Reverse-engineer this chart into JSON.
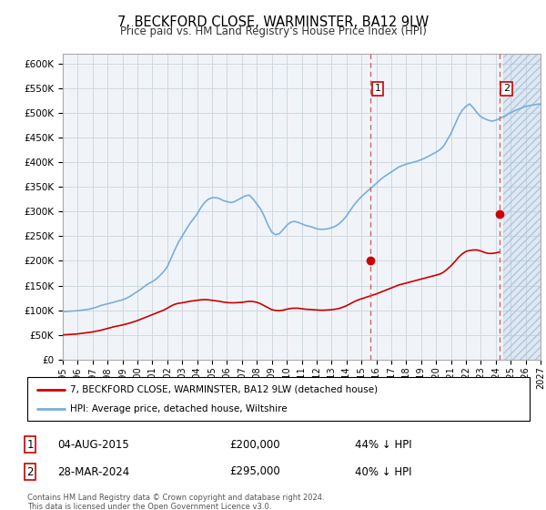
{
  "title": "7, BECKFORD CLOSE, WARMINSTER, BA12 9LW",
  "subtitle": "Price paid vs. HM Land Registry's House Price Index (HPI)",
  "ylim": [
    0,
    620000
  ],
  "yticks": [
    0,
    50000,
    100000,
    150000,
    200000,
    250000,
    300000,
    350000,
    400000,
    450000,
    500000,
    550000,
    600000
  ],
  "ytick_labels": [
    "£0",
    "£50K",
    "£100K",
    "£150K",
    "£200K",
    "£250K",
    "£300K",
    "£350K",
    "£400K",
    "£450K",
    "£500K",
    "£550K",
    "£600K"
  ],
  "xlim_start": 1995.0,
  "xlim_end": 2027.0,
  "hpi_color": "#7aaddc",
  "price_color": "#cc0000",
  "sale1_year": 2015.58,
  "sale1_price": 200000,
  "sale2_year": 2024.23,
  "sale2_price": 295000,
  "sale1_date": "04-AUG-2015",
  "sale1_amount": "£200,000",
  "sale1_pct": "44% ↓ HPI",
  "sale2_date": "28-MAR-2024",
  "sale2_amount": "£295,000",
  "sale2_pct": "40% ↓ HPI",
  "legend_property": "7, BECKFORD CLOSE, WARMINSTER, BA12 9LW (detached house)",
  "legend_hpi": "HPI: Average price, detached house, Wiltshire",
  "footer": "Contains HM Land Registry data © Crown copyright and database right 2024.\nThis data is licensed under the Open Government Licence v3.0.",
  "background_color": "#f0f4f8",
  "grid_color": "#d0d8e0",
  "future_start": 2024.5,
  "hpi_data": [
    [
      1995.0,
      97000
    ],
    [
      1995.25,
      97500
    ],
    [
      1995.5,
      98000
    ],
    [
      1995.75,
      98500
    ],
    [
      1996.0,
      99000
    ],
    [
      1996.25,
      100000
    ],
    [
      1996.5,
      101000
    ],
    [
      1996.75,
      102000
    ],
    [
      1997.0,
      104000
    ],
    [
      1997.25,
      106000
    ],
    [
      1997.5,
      109000
    ],
    [
      1997.75,
      111000
    ],
    [
      1998.0,
      113000
    ],
    [
      1998.25,
      115000
    ],
    [
      1998.5,
      117000
    ],
    [
      1998.75,
      119000
    ],
    [
      1999.0,
      121000
    ],
    [
      1999.25,
      124000
    ],
    [
      1999.5,
      128000
    ],
    [
      1999.75,
      133000
    ],
    [
      2000.0,
      138000
    ],
    [
      2000.25,
      143000
    ],
    [
      2000.5,
      149000
    ],
    [
      2000.75,
      154000
    ],
    [
      2001.0,
      158000
    ],
    [
      2001.25,
      163000
    ],
    [
      2001.5,
      170000
    ],
    [
      2001.75,
      178000
    ],
    [
      2002.0,
      188000
    ],
    [
      2002.25,
      205000
    ],
    [
      2002.5,
      222000
    ],
    [
      2002.75,
      238000
    ],
    [
      2003.0,
      250000
    ],
    [
      2003.25,
      263000
    ],
    [
      2003.5,
      275000
    ],
    [
      2003.75,
      285000
    ],
    [
      2004.0,
      295000
    ],
    [
      2004.25,
      308000
    ],
    [
      2004.5,
      318000
    ],
    [
      2004.75,
      325000
    ],
    [
      2005.0,
      328000
    ],
    [
      2005.25,
      328000
    ],
    [
      2005.5,
      326000
    ],
    [
      2005.75,
      322000
    ],
    [
      2006.0,
      320000
    ],
    [
      2006.25,
      318000
    ],
    [
      2006.5,
      320000
    ],
    [
      2006.75,
      324000
    ],
    [
      2007.0,
      328000
    ],
    [
      2007.25,
      332000
    ],
    [
      2007.5,
      333000
    ],
    [
      2007.75,
      325000
    ],
    [
      2008.0,
      315000
    ],
    [
      2008.25,
      305000
    ],
    [
      2008.5,
      290000
    ],
    [
      2008.75,
      272000
    ],
    [
      2009.0,
      258000
    ],
    [
      2009.25,
      253000
    ],
    [
      2009.5,
      255000
    ],
    [
      2009.75,
      263000
    ],
    [
      2010.0,
      272000
    ],
    [
      2010.25,
      278000
    ],
    [
      2010.5,
      280000
    ],
    [
      2010.75,
      278000
    ],
    [
      2011.0,
      275000
    ],
    [
      2011.25,
      272000
    ],
    [
      2011.5,
      270000
    ],
    [
      2011.75,
      268000
    ],
    [
      2012.0,
      265000
    ],
    [
      2012.25,
      264000
    ],
    [
      2012.5,
      264000
    ],
    [
      2012.75,
      265000
    ],
    [
      2013.0,
      267000
    ],
    [
      2013.25,
      270000
    ],
    [
      2013.5,
      275000
    ],
    [
      2013.75,
      282000
    ],
    [
      2014.0,
      291000
    ],
    [
      2014.25,
      302000
    ],
    [
      2014.5,
      313000
    ],
    [
      2014.75,
      322000
    ],
    [
      2015.0,
      330000
    ],
    [
      2015.25,
      337000
    ],
    [
      2015.5,
      344000
    ],
    [
      2015.75,
      350000
    ],
    [
      2016.0,
      357000
    ],
    [
      2016.25,
      364000
    ],
    [
      2016.5,
      370000
    ],
    [
      2016.75,
      375000
    ],
    [
      2017.0,
      380000
    ],
    [
      2017.25,
      385000
    ],
    [
      2017.5,
      390000
    ],
    [
      2017.75,
      393000
    ],
    [
      2018.0,
      396000
    ],
    [
      2018.25,
      398000
    ],
    [
      2018.5,
      400000
    ],
    [
      2018.75,
      402000
    ],
    [
      2019.0,
      405000
    ],
    [
      2019.25,
      408000
    ],
    [
      2019.5,
      412000
    ],
    [
      2019.75,
      416000
    ],
    [
      2020.0,
      420000
    ],
    [
      2020.25,
      425000
    ],
    [
      2020.5,
      432000
    ],
    [
      2020.75,
      445000
    ],
    [
      2021.0,
      458000
    ],
    [
      2021.25,
      475000
    ],
    [
      2021.5,
      492000
    ],
    [
      2021.75,
      505000
    ],
    [
      2022.0,
      513000
    ],
    [
      2022.25,
      518000
    ],
    [
      2022.5,
      510000
    ],
    [
      2022.75,
      500000
    ],
    [
      2023.0,
      492000
    ],
    [
      2023.25,
      488000
    ],
    [
      2023.5,
      485000
    ],
    [
      2023.75,
      483000
    ],
    [
      2024.0,
      485000
    ],
    [
      2024.25,
      488000
    ],
    [
      2024.5,
      492000
    ],
    [
      2024.75,
      496000
    ],
    [
      2025.0,
      500000
    ],
    [
      2025.25,
      504000
    ],
    [
      2025.5,
      507000
    ],
    [
      2025.75,
      510000
    ],
    [
      2026.0,
      513000
    ],
    [
      2026.5,
      516000
    ],
    [
      2027.0,
      518000
    ]
  ],
  "price_data": [
    [
      1995.0,
      50000
    ],
    [
      1995.25,
      50500
    ],
    [
      1995.5,
      51000
    ],
    [
      1995.75,
      51500
    ],
    [
      1996.0,
      52000
    ],
    [
      1996.25,
      53000
    ],
    [
      1996.5,
      54000
    ],
    [
      1996.75,
      55000
    ],
    [
      1997.0,
      56000
    ],
    [
      1997.25,
      57500
    ],
    [
      1997.5,
      59000
    ],
    [
      1997.75,
      61000
    ],
    [
      1998.0,
      63000
    ],
    [
      1998.25,
      65000
    ],
    [
      1998.5,
      67000
    ],
    [
      1998.75,
      68500
    ],
    [
      1999.0,
      70000
    ],
    [
      1999.25,
      72000
    ],
    [
      1999.5,
      74000
    ],
    [
      1999.75,
      76500
    ],
    [
      2000.0,
      79000
    ],
    [
      2000.25,
      82000
    ],
    [
      2000.5,
      85000
    ],
    [
      2000.75,
      88000
    ],
    [
      2001.0,
      91000
    ],
    [
      2001.25,
      94000
    ],
    [
      2001.5,
      97000
    ],
    [
      2001.75,
      100000
    ],
    [
      2002.0,
      104000
    ],
    [
      2002.25,
      108500
    ],
    [
      2002.5,
      112000
    ],
    [
      2002.75,
      114000
    ],
    [
      2003.0,
      115000
    ],
    [
      2003.25,
      116500
    ],
    [
      2003.5,
      118000
    ],
    [
      2003.75,
      119000
    ],
    [
      2004.0,
      120000
    ],
    [
      2004.25,
      121000
    ],
    [
      2004.5,
      121500
    ],
    [
      2004.75,
      121000
    ],
    [
      2005.0,
      120000
    ],
    [
      2005.25,
      119000
    ],
    [
      2005.5,
      118000
    ],
    [
      2005.75,
      116500
    ],
    [
      2006.0,
      115500
    ],
    [
      2006.25,
      115000
    ],
    [
      2006.5,
      115000
    ],
    [
      2006.75,
      115500
    ],
    [
      2007.0,
      116000
    ],
    [
      2007.25,
      117000
    ],
    [
      2007.5,
      118000
    ],
    [
      2007.75,
      117500
    ],
    [
      2008.0,
      116000
    ],
    [
      2008.25,
      113000
    ],
    [
      2008.5,
      109000
    ],
    [
      2008.75,
      105000
    ],
    [
      2009.0,
      101000
    ],
    [
      2009.25,
      99500
    ],
    [
      2009.5,
      99000
    ],
    [
      2009.75,
      100000
    ],
    [
      2010.0,
      102000
    ],
    [
      2010.25,
      103500
    ],
    [
      2010.5,
      104000
    ],
    [
      2010.75,
      104000
    ],
    [
      2011.0,
      103000
    ],
    [
      2011.25,
      102000
    ],
    [
      2011.5,
      101500
    ],
    [
      2011.75,
      101000
    ],
    [
      2012.0,
      100500
    ],
    [
      2012.25,
      100000
    ],
    [
      2012.5,
      100000
    ],
    [
      2012.75,
      100500
    ],
    [
      2013.0,
      101000
    ],
    [
      2013.25,
      102000
    ],
    [
      2013.5,
      103500
    ],
    [
      2013.75,
      106000
    ],
    [
      2014.0,
      109000
    ],
    [
      2014.25,
      113000
    ],
    [
      2014.5,
      117000
    ],
    [
      2014.75,
      120500
    ],
    [
      2015.0,
      123000
    ],
    [
      2015.25,
      125500
    ],
    [
      2015.5,
      128000
    ],
    [
      2015.75,
      130500
    ],
    [
      2016.0,
      133000
    ],
    [
      2016.25,
      136000
    ],
    [
      2016.5,
      139000
    ],
    [
      2016.75,
      142000
    ],
    [
      2017.0,
      145000
    ],
    [
      2017.25,
      148000
    ],
    [
      2017.5,
      151000
    ],
    [
      2017.75,
      153000
    ],
    [
      2018.0,
      155000
    ],
    [
      2018.25,
      157000
    ],
    [
      2018.5,
      159000
    ],
    [
      2018.75,
      161000
    ],
    [
      2019.0,
      163000
    ],
    [
      2019.25,
      165000
    ],
    [
      2019.5,
      167000
    ],
    [
      2019.75,
      169000
    ],
    [
      2020.0,
      171000
    ],
    [
      2020.25,
      173000
    ],
    [
      2020.5,
      177000
    ],
    [
      2020.75,
      183000
    ],
    [
      2021.0,
      190000
    ],
    [
      2021.25,
      198000
    ],
    [
      2021.5,
      207000
    ],
    [
      2021.75,
      214000
    ],
    [
      2022.0,
      219000
    ],
    [
      2022.25,
      221000
    ],
    [
      2022.5,
      222000
    ],
    [
      2022.75,
      222000
    ],
    [
      2023.0,
      220000
    ],
    [
      2023.25,
      217000
    ],
    [
      2023.5,
      215000
    ],
    [
      2023.75,
      215000
    ],
    [
      2024.0,
      216000
    ],
    [
      2024.25,
      218000
    ]
  ]
}
